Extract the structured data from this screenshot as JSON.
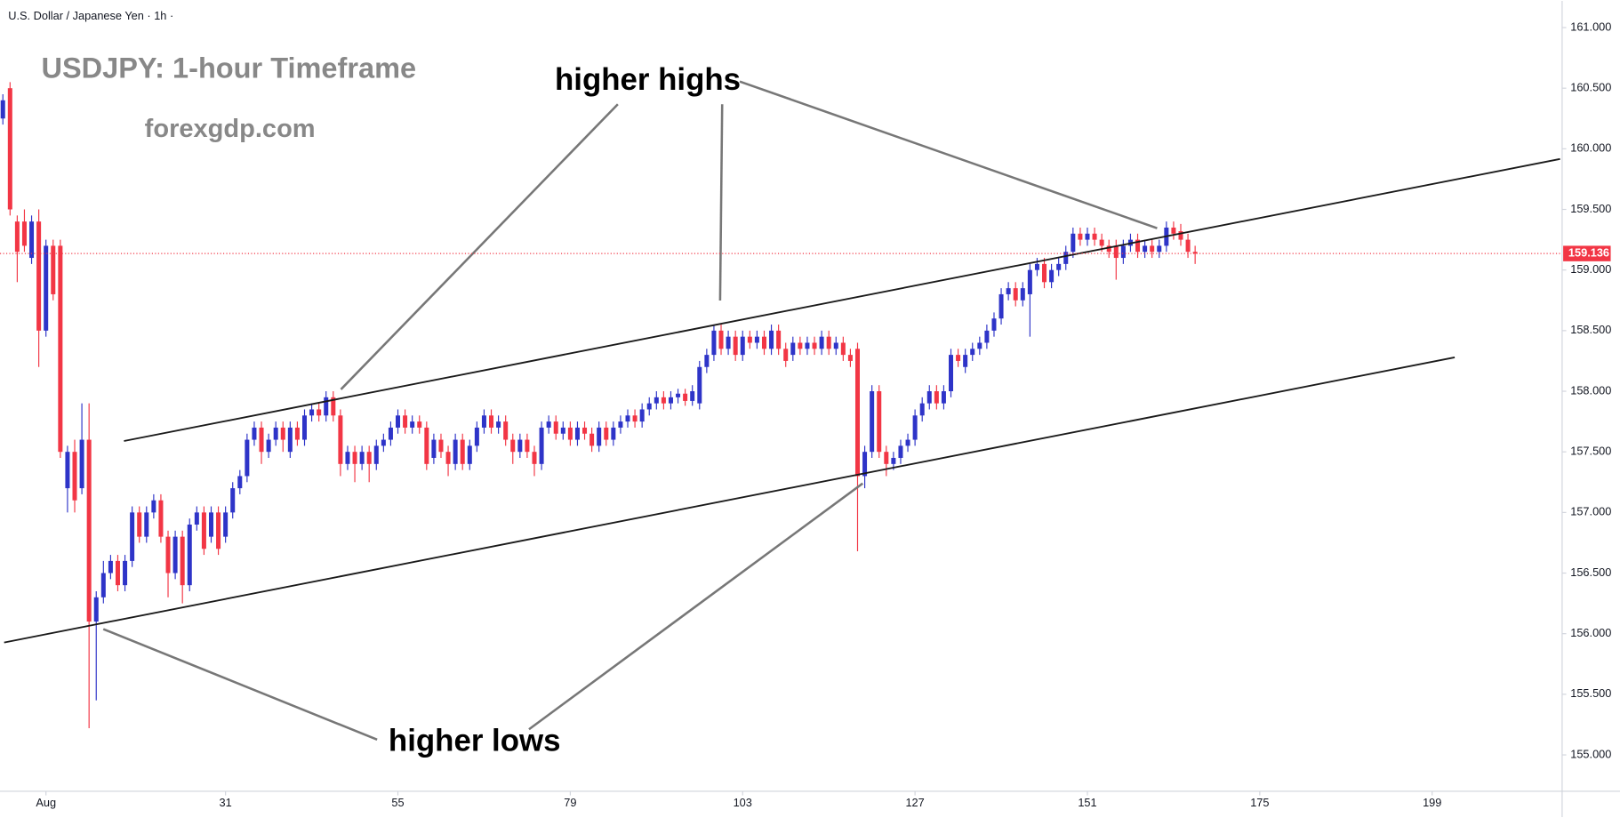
{
  "chart_data": {
    "type": "candlestick",
    "header": "U.S. Dollar / Japanese Yen · 1h ·",
    "title": "USDJPY: 1-hour Timeframe",
    "subtitle": "forexgdp.com",
    "annotations": [
      "higher highs",
      "higher lows"
    ],
    "up_color": "#2e34c8",
    "down_color": "#f23645",
    "last_price": 159.136,
    "x": [
      0,
      1,
      2,
      3,
      4,
      5,
      6,
      7,
      8,
      9,
      10,
      11,
      12,
      13,
      14,
      15,
      16,
      17,
      18,
      19,
      20,
      21,
      22,
      23,
      24,
      25,
      26,
      27,
      28,
      29,
      30,
      31,
      32,
      33,
      34,
      35,
      36,
      37,
      38,
      39,
      40,
      41,
      42,
      43,
      44,
      45,
      46,
      47,
      48,
      49,
      50,
      51,
      52,
      53,
      54,
      55,
      56,
      57,
      58,
      59,
      60,
      61,
      62,
      63,
      64,
      65,
      66,
      67,
      68,
      69,
      70,
      71,
      72,
      73,
      74,
      75,
      76,
      77,
      78,
      79,
      80,
      81,
      82,
      83,
      84,
      85,
      86,
      87,
      88,
      89,
      90,
      91,
      92,
      93,
      94,
      95,
      96,
      97,
      98,
      99,
      100,
      101,
      102,
      103,
      104,
      105,
      106,
      107,
      108,
      109,
      110,
      111,
      112,
      113,
      114,
      115,
      116,
      117,
      118,
      119,
      120,
      121,
      122,
      123,
      124,
      125,
      126,
      127,
      128,
      129,
      130,
      131,
      132,
      133,
      134,
      135,
      136,
      137,
      138,
      139,
      140,
      141,
      142,
      143,
      144,
      145,
      146,
      147,
      148,
      149,
      150,
      151,
      152,
      153,
      154,
      155,
      156,
      157,
      158,
      159,
      160,
      161,
      162,
      163,
      164,
      165,
      166
    ],
    "ohlc": [
      [
        160.25,
        160.45,
        160.2,
        160.4
      ],
      [
        160.5,
        160.55,
        159.45,
        159.5
      ],
      [
        159.4,
        159.45,
        158.9,
        159.15
      ],
      [
        159.4,
        159.5,
        159.15,
        159.2
      ],
      [
        159.1,
        159.45,
        159.05,
        159.4
      ],
      [
        159.4,
        159.5,
        158.2,
        158.5
      ],
      [
        158.5,
        159.25,
        158.45,
        159.2
      ],
      [
        159.2,
        159.25,
        158.75,
        158.8
      ],
      [
        159.2,
        159.25,
        157.45,
        157.5
      ],
      [
        157.2,
        157.55,
        157.0,
        157.5
      ],
      [
        157.5,
        157.6,
        157.0,
        157.1
      ],
      [
        157.2,
        157.9,
        157.15,
        157.6
      ],
      [
        157.6,
        157.9,
        155.22,
        156.1
      ],
      [
        156.1,
        156.35,
        155.45,
        156.3
      ],
      [
        156.3,
        156.6,
        156.25,
        156.5
      ],
      [
        156.5,
        156.65,
        156.45,
        156.6
      ],
      [
        156.6,
        156.65,
        156.35,
        156.4
      ],
      [
        156.4,
        156.65,
        156.35,
        156.6
      ],
      [
        156.6,
        157.05,
        156.55,
        157.0
      ],
      [
        157.0,
        157.05,
        156.75,
        156.8
      ],
      [
        156.8,
        157.05,
        156.75,
        157.0
      ],
      [
        157.0,
        157.15,
        156.95,
        157.1
      ],
      [
        157.1,
        157.15,
        156.75,
        156.8
      ],
      [
        156.8,
        156.85,
        156.3,
        156.5
      ],
      [
        156.5,
        156.85,
        156.45,
        156.8
      ],
      [
        156.8,
        156.85,
        156.25,
        156.4
      ],
      [
        156.4,
        156.95,
        156.35,
        156.9
      ],
      [
        156.9,
        157.05,
        156.85,
        157.0
      ],
      [
        157.0,
        157.05,
        156.65,
        156.7
      ],
      [
        156.8,
        157.05,
        156.75,
        157.0
      ],
      [
        157.0,
        157.05,
        156.65,
        156.7
      ],
      [
        156.8,
        157.05,
        156.75,
        157.0
      ],
      [
        157.0,
        157.25,
        156.95,
        157.2
      ],
      [
        157.2,
        157.35,
        157.15,
        157.3
      ],
      [
        157.3,
        157.65,
        157.25,
        157.6
      ],
      [
        157.6,
        157.75,
        157.55,
        157.7
      ],
      [
        157.7,
        157.75,
        157.4,
        157.5
      ],
      [
        157.5,
        157.65,
        157.45,
        157.6
      ],
      [
        157.6,
        157.75,
        157.55,
        157.7
      ],
      [
        157.7,
        157.75,
        157.5,
        157.6
      ],
      [
        157.5,
        157.75,
        157.45,
        157.7
      ],
      [
        157.7,
        157.75,
        157.55,
        157.6
      ],
      [
        157.6,
        157.85,
        157.55,
        157.8
      ],
      [
        157.8,
        157.9,
        157.75,
        157.85
      ],
      [
        157.85,
        157.9,
        157.75,
        157.8
      ],
      [
        157.8,
        158.0,
        157.75,
        157.95
      ],
      [
        157.95,
        158.0,
        157.75,
        157.8
      ],
      [
        157.8,
        157.85,
        157.3,
        157.4
      ],
      [
        157.4,
        157.55,
        157.35,
        157.5
      ],
      [
        157.5,
        157.55,
        157.25,
        157.4
      ],
      [
        157.4,
        157.55,
        157.35,
        157.5
      ],
      [
        157.5,
        157.55,
        157.25,
        157.4
      ],
      [
        157.4,
        157.6,
        157.35,
        157.55
      ],
      [
        157.55,
        157.65,
        157.5,
        157.6
      ],
      [
        157.6,
        157.75,
        157.55,
        157.7
      ],
      [
        157.7,
        157.85,
        157.65,
        157.8
      ],
      [
        157.8,
        157.85,
        157.65,
        157.7
      ],
      [
        157.7,
        157.8,
        157.65,
        157.75
      ],
      [
        157.75,
        157.8,
        157.65,
        157.7
      ],
      [
        157.7,
        157.75,
        157.35,
        157.4
      ],
      [
        157.45,
        157.65,
        157.4,
        157.6
      ],
      [
        157.6,
        157.65,
        157.45,
        157.5
      ],
      [
        157.5,
        157.55,
        157.3,
        157.4
      ],
      [
        157.4,
        157.65,
        157.35,
        157.6
      ],
      [
        157.6,
        157.65,
        157.35,
        157.4
      ],
      [
        157.4,
        157.6,
        157.35,
        157.55
      ],
      [
        157.55,
        157.75,
        157.5,
        157.7
      ],
      [
        157.7,
        157.85,
        157.65,
        157.8
      ],
      [
        157.8,
        157.85,
        157.65,
        157.7
      ],
      [
        157.7,
        157.8,
        157.65,
        157.75
      ],
      [
        157.75,
        157.8,
        157.55,
        157.6
      ],
      [
        157.6,
        157.65,
        157.4,
        157.5
      ],
      [
        157.5,
        157.65,
        157.45,
        157.6
      ],
      [
        157.6,
        157.65,
        157.45,
        157.5
      ],
      [
        157.5,
        157.55,
        157.3,
        157.4
      ],
      [
        157.4,
        157.75,
        157.35,
        157.7
      ],
      [
        157.7,
        157.8,
        157.65,
        157.75
      ],
      [
        157.75,
        157.8,
        157.6,
        157.65
      ],
      [
        157.65,
        157.75,
        157.6,
        157.7
      ],
      [
        157.7,
        157.75,
        157.55,
        157.6
      ],
      [
        157.6,
        157.75,
        157.55,
        157.7
      ],
      [
        157.7,
        157.75,
        157.6,
        157.65
      ],
      [
        157.65,
        157.7,
        157.5,
        157.55
      ],
      [
        157.55,
        157.75,
        157.5,
        157.7
      ],
      [
        157.7,
        157.75,
        157.55,
        157.6
      ],
      [
        157.6,
        157.75,
        157.55,
        157.7
      ],
      [
        157.7,
        157.8,
        157.65,
        157.75
      ],
      [
        157.75,
        157.85,
        157.7,
        157.8
      ],
      [
        157.8,
        157.85,
        157.7,
        157.75
      ],
      [
        157.75,
        157.9,
        157.7,
        157.85
      ],
      [
        157.85,
        157.95,
        157.8,
        157.9
      ],
      [
        157.9,
        158.0,
        157.85,
        157.95
      ],
      [
        157.95,
        158.0,
        157.85,
        157.9
      ],
      [
        157.9,
        158.0,
        157.85,
        157.95
      ],
      [
        157.95,
        158.02,
        157.9,
        157.98
      ],
      [
        157.98,
        158.02,
        157.88,
        157.92
      ],
      [
        157.92,
        158.05,
        157.88,
        158.0
      ],
      [
        157.9,
        158.25,
        157.85,
        158.2
      ],
      [
        158.2,
        158.35,
        158.15,
        158.3
      ],
      [
        158.3,
        158.55,
        158.25,
        158.5
      ],
      [
        158.5,
        158.55,
        158.3,
        158.35
      ],
      [
        158.35,
        158.5,
        158.3,
        158.45
      ],
      [
        158.45,
        158.5,
        158.25,
        158.3
      ],
      [
        158.3,
        158.5,
        158.25,
        158.45
      ],
      [
        158.45,
        158.5,
        158.35,
        158.4
      ],
      [
        158.4,
        158.5,
        158.35,
        158.45
      ],
      [
        158.45,
        158.5,
        158.3,
        158.35
      ],
      [
        158.35,
        158.55,
        158.3,
        158.5
      ],
      [
        158.5,
        158.55,
        158.3,
        158.35
      ],
      [
        158.35,
        158.4,
        158.2,
        158.25
      ],
      [
        158.3,
        158.45,
        158.25,
        158.4
      ],
      [
        158.4,
        158.45,
        158.3,
        158.35
      ],
      [
        158.35,
        158.45,
        158.3,
        158.4
      ],
      [
        158.4,
        158.45,
        158.3,
        158.35
      ],
      [
        158.35,
        158.5,
        158.3,
        158.45
      ],
      [
        158.45,
        158.5,
        158.3,
        158.35
      ],
      [
        158.35,
        158.45,
        158.3,
        158.4
      ],
      [
        158.4,
        158.45,
        158.25,
        158.3
      ],
      [
        158.3,
        158.35,
        158.2,
        158.25
      ],
      [
        158.35,
        158.4,
        156.68,
        157.3
      ],
      [
        157.3,
        157.55,
        157.2,
        157.5
      ],
      [
        157.5,
        158.05,
        157.45,
        158.0
      ],
      [
        158.0,
        158.05,
        157.45,
        157.5
      ],
      [
        157.5,
        157.55,
        157.3,
        157.4
      ],
      [
        157.4,
        157.5,
        157.35,
        157.45
      ],
      [
        157.45,
        157.6,
        157.4,
        157.55
      ],
      [
        157.55,
        157.65,
        157.5,
        157.6
      ],
      [
        157.6,
        157.85,
        157.55,
        157.8
      ],
      [
        157.8,
        157.95,
        157.75,
        157.9
      ],
      [
        157.9,
        158.05,
        157.85,
        158.0
      ],
      [
        158.0,
        158.05,
        157.85,
        157.9
      ],
      [
        157.9,
        158.05,
        157.85,
        158.0
      ],
      [
        158.0,
        158.35,
        157.95,
        158.3
      ],
      [
        158.3,
        158.35,
        158.2,
        158.25
      ],
      [
        158.2,
        158.35,
        158.15,
        158.3
      ],
      [
        158.3,
        158.4,
        158.25,
        158.35
      ],
      [
        158.35,
        158.45,
        158.3,
        158.4
      ],
      [
        158.4,
        158.55,
        158.35,
        158.5
      ],
      [
        158.5,
        158.65,
        158.45,
        158.6
      ],
      [
        158.6,
        158.85,
        158.55,
        158.8
      ],
      [
        158.8,
        158.9,
        158.75,
        158.85
      ],
      [
        158.85,
        158.9,
        158.7,
        158.75
      ],
      [
        158.75,
        158.9,
        158.7,
        158.85
      ],
      [
        158.8,
        159.05,
        158.45,
        159.0
      ],
      [
        159.0,
        159.1,
        158.95,
        159.05
      ],
      [
        159.05,
        159.1,
        158.85,
        158.9
      ],
      [
        158.9,
        159.05,
        158.85,
        159.0
      ],
      [
        159.0,
        159.1,
        158.95,
        159.05
      ],
      [
        159.05,
        159.2,
        159.0,
        159.15
      ],
      [
        159.15,
        159.35,
        159.1,
        159.3
      ],
      [
        159.3,
        159.35,
        159.2,
        159.25
      ],
      [
        159.25,
        159.35,
        159.2,
        159.3
      ],
      [
        159.3,
        159.35,
        159.2,
        159.25
      ],
      [
        159.25,
        159.3,
        159.15,
        159.2
      ],
      [
        159.2,
        159.25,
        159.1,
        159.15
      ],
      [
        159.2,
        159.25,
        158.92,
        159.1
      ],
      [
        159.1,
        159.25,
        159.05,
        159.2
      ],
      [
        159.2,
        159.3,
        159.15,
        159.25
      ],
      [
        159.25,
        159.3,
        159.1,
        159.15
      ],
      [
        159.15,
        159.25,
        159.1,
        159.2
      ],
      [
        159.2,
        159.25,
        159.1,
        159.15
      ],
      [
        159.15,
        159.25,
        159.1,
        159.2
      ],
      [
        159.2,
        159.4,
        159.15,
        159.35
      ],
      [
        159.35,
        159.4,
        159.25,
        159.3
      ],
      [
        159.32,
        159.38,
        159.2,
        159.25
      ],
      [
        159.25,
        159.3,
        159.1,
        159.15
      ],
      [
        159.15,
        159.2,
        159.05,
        159.136
      ]
    ],
    "xlim": [
      -0.4,
      217.1
    ],
    "xticks": [
      {
        "value": 6,
        "label": "Aug"
      },
      31,
      55,
      79,
      103,
      127,
      151,
      175,
      199
    ],
    "ylim": [
      154.7,
      161.22
    ],
    "yticks": [
      {
        "value": 155,
        "label": "155.000"
      },
      {
        "value": 155.5,
        "label": "155.500"
      },
      {
        "value": 156,
        "label": "156.000"
      },
      {
        "value": 156.5,
        "label": "156.500"
      },
      {
        "value": 157,
        "label": "157.000"
      },
      {
        "value": 157.5,
        "label": "157.500"
      },
      {
        "value": 158,
        "label": "158.000"
      },
      {
        "value": 158.5,
        "label": "158.500"
      },
      {
        "value": 159,
        "label": "159.000"
      },
      {
        "value": 159.5,
        "label": "159.500"
      },
      {
        "value": 160,
        "label": "160.000"
      },
      {
        "value": 160.5,
        "label": "160.500"
      },
      {
        "value": 161,
        "label": "161.000"
      }
    ]
  }
}
